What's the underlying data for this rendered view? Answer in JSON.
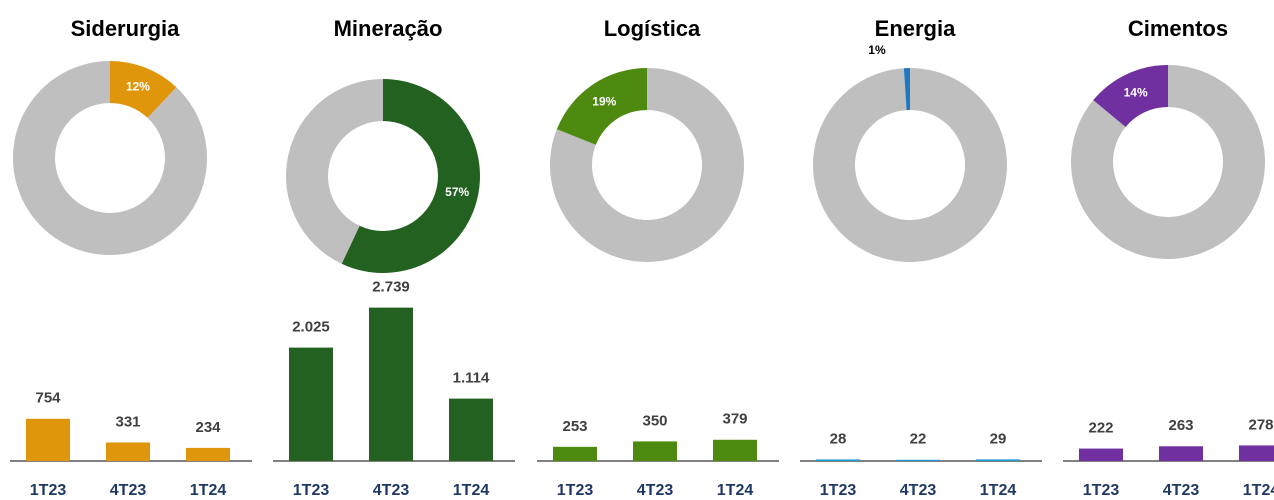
{
  "chart_data": [
    {
      "type": "pie",
      "title": "Siderurgia",
      "values": [
        12,
        88
      ],
      "value_labels": [
        "12%",
        null
      ],
      "colors": [
        "#e0960b",
        "#bfbfbf"
      ]
    },
    {
      "type": "bar",
      "categories": [
        "1T23",
        "4T23",
        "1T24"
      ],
      "values": [
        754,
        331,
        234
      ],
      "color": "#e0960b",
      "ylim": [
        0,
        3000
      ]
    },
    {
      "type": "pie",
      "title": "Mineração",
      "values": [
        57,
        43
      ],
      "value_labels": [
        "57%",
        null
      ],
      "colors": [
        "#236120",
        "#bfbfbf"
      ]
    },
    {
      "type": "bar",
      "categories": [
        "1T23",
        "4T23",
        "1T24"
      ],
      "values": [
        2025,
        2739,
        1114
      ],
      "value_labels": [
        "2.025",
        "2.739",
        "1.114"
      ],
      "color": "#236120",
      "ylim": [
        0,
        3000
      ]
    },
    {
      "type": "pie",
      "title": "Logística",
      "values": [
        81,
        19
      ],
      "value_labels": [
        null,
        "19%"
      ],
      "colors": [
        "#bfbfbf",
        "#4f8a10"
      ]
    },
    {
      "type": "bar",
      "categories": [
        "1T23",
        "4T23",
        "1T24"
      ],
      "values": [
        253,
        350,
        379
      ],
      "color": "#4f8a10",
      "ylim": [
        0,
        3000
      ]
    },
    {
      "type": "pie",
      "title": "Energia",
      "values": [
        99,
        1
      ],
      "value_labels": [
        null,
        "1%"
      ],
      "colors": [
        "#bfbfbf",
        "#1f78c1"
      ]
    },
    {
      "type": "bar",
      "categories": [
        "1T23",
        "4T23",
        "1T24"
      ],
      "values": [
        28,
        22,
        29
      ],
      "color": "#1f9bd7",
      "ylim": [
        0,
        3000
      ]
    },
    {
      "type": "pie",
      "title": "Cimentos",
      "values": [
        86,
        14
      ],
      "value_labels": [
        null,
        "14%"
      ],
      "colors": [
        "#bfbfbf",
        "#7030a0"
      ]
    },
    {
      "type": "bar",
      "categories": [
        "1T23",
        "4T23",
        "1T24"
      ],
      "values": [
        222,
        263,
        278
      ],
      "color": "#7030a0",
      "ylim": [
        0,
        3000
      ]
    }
  ]
}
